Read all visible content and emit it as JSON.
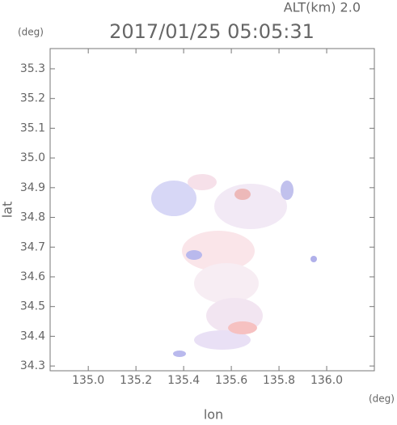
{
  "chart_data": {
    "type": "map",
    "title": "2017/01/25 05:05:31",
    "subtitle": "ALT(km) 2.0",
    "xlabel": "lon",
    "ylabel": "lat",
    "xunit": "(deg)",
    "yunit": "(deg)",
    "xlim": [
      134.84,
      136.2
    ],
    "ylim": [
      34.284,
      35.368
    ],
    "xticks": [
      {
        "value": 135.0,
        "label": "135.0"
      },
      135.2,
      135.4,
      135.6,
      135.8,
      {
        "value": 136.0,
        "label": "136.0"
      }
    ],
    "yticks": [
      34.3,
      34.4,
      34.5,
      34.6,
      34.7,
      34.8,
      34.9,
      {
        "value": 35.0,
        "label": "35.0"
      },
      35.1,
      35.2,
      35.3
    ]
  }
}
